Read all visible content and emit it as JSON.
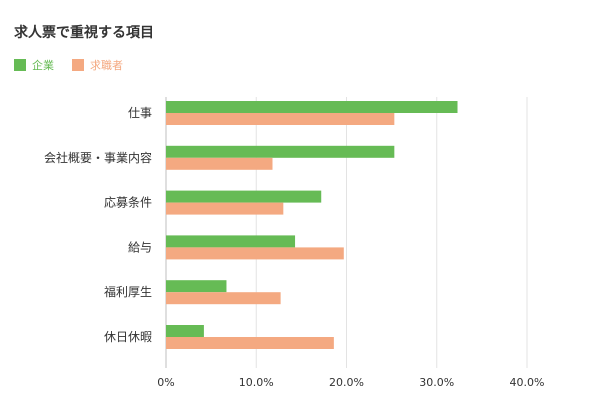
{
  "chart_data": {
    "type": "bar",
    "orientation": "horizontal",
    "title": "求人票で重視する項目",
    "categories": [
      "仕事",
      "会社概要・事業内容",
      "応募条件",
      "給与",
      "福利厚生",
      "休日休暇"
    ],
    "series": [
      {
        "name": "企業",
        "color": "#66bb55",
        "values": [
          32.3,
          25.3,
          17.2,
          14.3,
          6.7,
          4.2
        ]
      },
      {
        "name": "求職者",
        "color": "#f4a981",
        "values": [
          25.3,
          11.8,
          13.0,
          19.7,
          12.7,
          18.6
        ]
      }
    ],
    "xlim": [
      0,
      40
    ],
    "xticks": [
      0,
      10,
      20,
      30,
      40
    ],
    "xtick_labels": [
      "0%",
      "10.0%",
      "20.0%",
      "30.0%",
      "40.0%"
    ],
    "grid": true,
    "legend_position": "top-left"
  }
}
